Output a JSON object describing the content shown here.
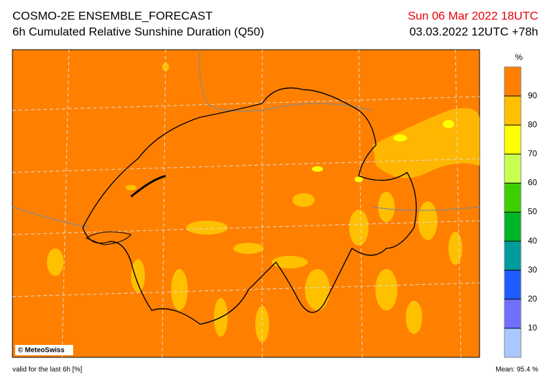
{
  "header": {
    "title": "COSMO-2E ENSEMBLE_FORECAST",
    "subtitle": "6h Cumulated Relative Sunshine Duration (Q50)",
    "valid_time": "Sun 06 Mar 2022 18UTC",
    "run": "03.03.2022 12UTC +78h"
  },
  "map": {
    "credit": "© MeteoSwiss",
    "fill_color": "#ff8000"
  },
  "legend": {
    "unit": "%",
    "lim": [
      0,
      100
    ],
    "ticks": [
      10,
      20,
      30,
      40,
      50,
      60,
      70,
      80,
      90
    ],
    "colors": [
      "#a8c8ff",
      "#7070ff",
      "#1e5cff",
      "#009c9c",
      "#00b428",
      "#3cd000",
      "#c8ff50",
      "#ffff00",
      "#ffc000",
      "#ff8000"
    ]
  },
  "footer": {
    "note": "valid for the last 6h [%]",
    "mean": "Mean:  95.4 %"
  }
}
